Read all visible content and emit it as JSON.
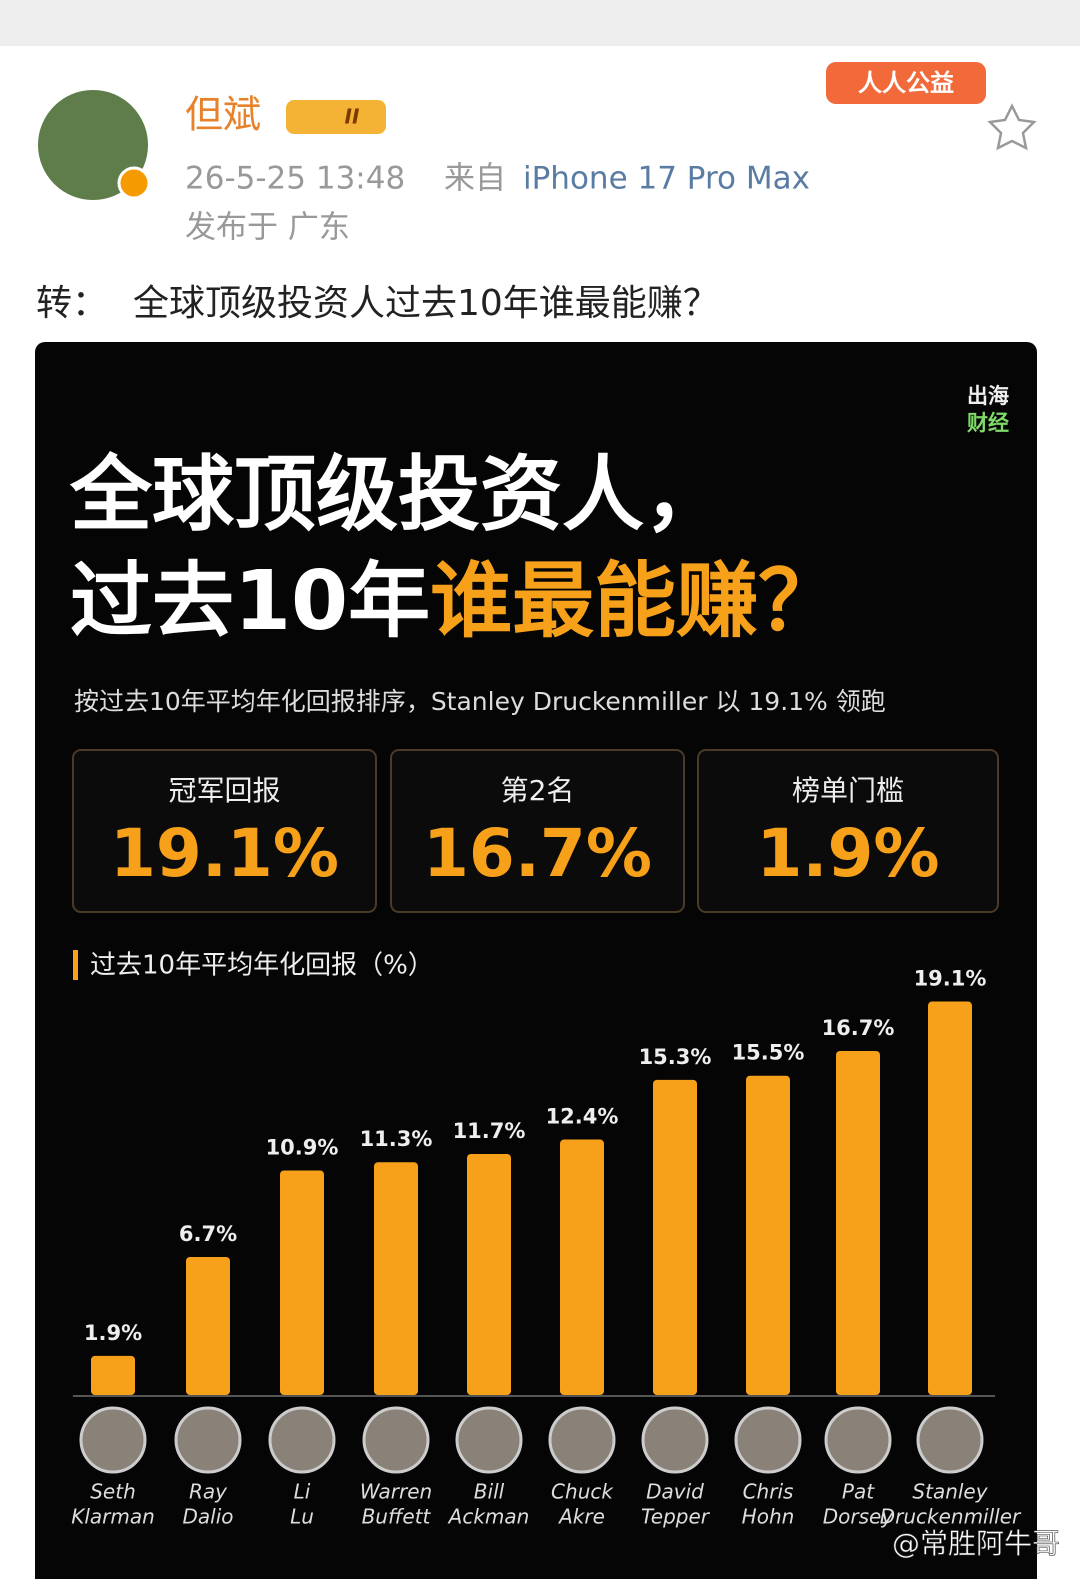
{
  "post": {
    "author": "但斌",
    "badge": "II",
    "time": "26-5-25 13:48",
    "source_prefix": "来自",
    "source": "iPhone 17 Pro Max",
    "location": "发布于 广东",
    "charity": "人人公益",
    "text_prefix": "转：",
    "text": "全球顶级投资人过去10年谁最能赚？",
    "watermark": "@常胜阿牛哥"
  },
  "image": {
    "brand": [
      "出海",
      "财经"
    ],
    "title_line1": "全球顶级投资人，",
    "title_line2_white": "过去10年",
    "title_line2_orange": "谁最能赚？",
    "subtitle": "按过去10年平均年化回报排序，Stanley Druckenmiller 以 19.1% 领跑",
    "stats": [
      {
        "label": "冠军回报",
        "value": "19.1%"
      },
      {
        "label": "第2名",
        "value": "16.7%"
      },
      {
        "label": "榜单门槛",
        "value": "1.9%"
      }
    ]
  },
  "chart_data": {
    "type": "bar",
    "title": "过去10年平均年化回报（%）",
    "categories": [
      [
        "Seth",
        "Klarman"
      ],
      [
        "Ray",
        "Dalio"
      ],
      [
        "Li",
        "Lu"
      ],
      [
        "Warren",
        "Buffett"
      ],
      [
        "Bill",
        "Ackman"
      ],
      [
        "Chuck",
        "Akre"
      ],
      [
        "David",
        "Tepper"
      ],
      [
        "Chris",
        "Hohn"
      ],
      [
        "Pat",
        "Dorsey"
      ],
      [
        "Stanley",
        "Druckenmiller"
      ]
    ],
    "values": [
      1.9,
      6.7,
      10.9,
      11.3,
      11.7,
      12.4,
      15.3,
      15.5,
      16.7,
      19.1
    ],
    "value_labels": [
      "1.9%",
      "6.7%",
      "10.9%",
      "11.3%",
      "11.7%",
      "12.4%",
      "15.3%",
      "15.5%",
      "16.7%",
      "19.1%"
    ],
    "color": "#f7a11a"
  }
}
